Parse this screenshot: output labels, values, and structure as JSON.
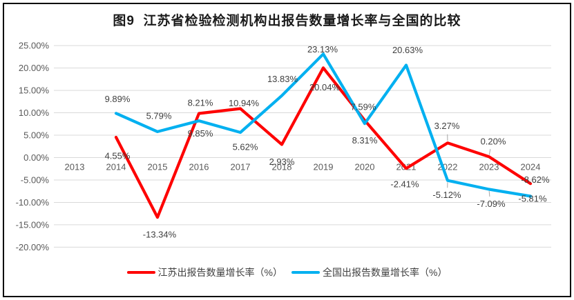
{
  "chart_data": {
    "type": "line",
    "title": "图9  江苏省检验检测机构出报告数量增长率与全国的比较",
    "categories": [
      "2013",
      "2014",
      "2015",
      "2016",
      "2017",
      "2018",
      "2019",
      "2020",
      "2021",
      "2022",
      "2023",
      "2024"
    ],
    "ylim": [
      -20,
      25
    ],
    "grid": true,
    "legend_position": "bottom",
    "y_ticks": [
      {
        "v": 25,
        "label": "25.00%"
      },
      {
        "v": 20,
        "label": "20.00%"
      },
      {
        "v": 15,
        "label": "15.00%"
      },
      {
        "v": 10,
        "label": "10.00%"
      },
      {
        "v": 5,
        "label": "5.00%"
      },
      {
        "v": 0,
        "label": "0.00%"
      },
      {
        "v": -5,
        "label": "-5.00%"
      },
      {
        "v": -10,
        "label": "-10.00%"
      },
      {
        "v": -15,
        "label": "-15.00%"
      },
      {
        "v": -20,
        "label": "-20.00%"
      }
    ],
    "series": [
      {
        "name": "江苏出报告数量增长率（%）",
        "color": "#fe0000",
        "points": [
          {
            "year": "2014",
            "value": 4.55,
            "label": "4.55%",
            "dx": 2,
            "dy": 27
          },
          {
            "year": "2015",
            "value": -13.34,
            "label": "-13.34%",
            "dx": 3,
            "dy": 25
          },
          {
            "year": "2016",
            "value": 9.85,
            "label": "9.85%",
            "dx": 2,
            "dy": 29
          },
          {
            "year": "2017",
            "value": 10.94,
            "label": "10.94%",
            "dx": 5,
            "dy": -8
          },
          {
            "year": "2018",
            "value": 2.93,
            "label": "2.93%",
            "dx": 0,
            "dy": 25
          },
          {
            "year": "2019",
            "value": 20.04,
            "label": "20.04%",
            "dx": 2,
            "dy": 28
          },
          {
            "year": "2020",
            "value": 8.31,
            "label": "8.31%",
            "dx": 0,
            "dy": 29
          },
          {
            "year": "2021",
            "value": -2.41,
            "label": "-2.41%",
            "dx": -2,
            "dy": 23
          },
          {
            "year": "2022",
            "value": 3.27,
            "label": "3.27%",
            "dx": -1,
            "dy": -25,
            "leader": true
          },
          {
            "year": "2023",
            "value": 0.2,
            "label": "0.20%",
            "dx": 6,
            "dy": -22,
            "leader": true
          },
          {
            "year": "2024",
            "value": -5.81,
            "label": "-5.81%",
            "dx": 3,
            "dy": 22
          }
        ]
      },
      {
        "name": "全国出报告数量增长率（%）",
        "color": "#00b0f0",
        "points": [
          {
            "year": "2014",
            "value": 9.89,
            "label": "9.89%",
            "dx": 2,
            "dy": -21
          },
          {
            "year": "2015",
            "value": 5.79,
            "label": "5.79%",
            "dx": 2,
            "dy": -23
          },
          {
            "year": "2016",
            "value": 8.21,
            "label": "8.21%",
            "dx": 2,
            "dy": -26
          },
          {
            "year": "2017",
            "value": 5.62,
            "label": "5.62%",
            "dx": 7,
            "dy": 21
          },
          {
            "year": "2018",
            "value": 13.83,
            "label": "13.83%",
            "dx": 1,
            "dy": -24
          },
          {
            "year": "2019",
            "value": 23.13,
            "label": "23.13%",
            "dx": -1,
            "dy": -7
          },
          {
            "year": "2020",
            "value": 7.59,
            "label": "7.59%",
            "dx": -2,
            "dy": -24
          },
          {
            "year": "2021",
            "value": 20.63,
            "label": "20.63%",
            "dx": 2,
            "dy": -22
          },
          {
            "year": "2022",
            "value": -5.12,
            "label": "-5.12%",
            "dx": -1,
            "dy": 21,
            "leader": true
          },
          {
            "year": "2023",
            "value": -7.09,
            "label": "-7.09%",
            "dx": 3,
            "dy": 21,
            "leader": true
          },
          {
            "year": "2024",
            "value": -8.62,
            "label": "-8.62%",
            "dx": 7,
            "dy": -24
          }
        ]
      }
    ]
  }
}
